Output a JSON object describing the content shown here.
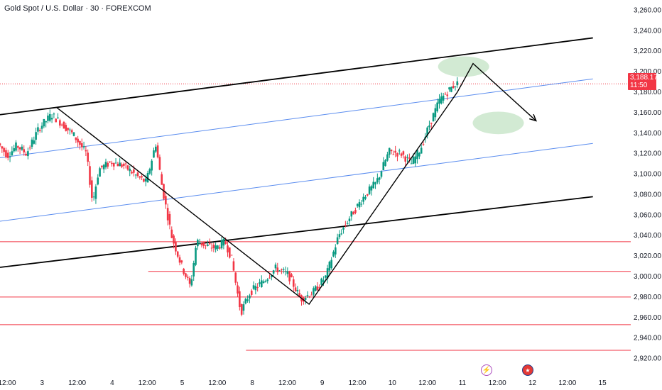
{
  "header": {
    "title": "Gold Spot / U.S. Dollar · 30 · FOREXCOM"
  },
  "price_tag": {
    "price": "3,188.17",
    "countdown": "11:50",
    "color": "#f23645"
  },
  "icons": {
    "lightning": "lightning-icon",
    "flags": "us-flag-event-icon"
  },
  "colors": {
    "up": "#089981",
    "down": "#f23645",
    "trend": "#000000",
    "channel": "#5b8def",
    "hline": "#f23645",
    "zone": "#a5d6a7"
  },
  "chart_data": {
    "type": "candlestick",
    "symbol": "Gold Spot / U.S. Dollar",
    "interval": "30",
    "source": "FOREXCOM",
    "last_price": 3188.17,
    "ylim": [
      2910,
      3270
    ],
    "y_ticks": [
      "3,260.00",
      "3,240.00",
      "3,220.00",
      "3,200.00",
      "3,180.00",
      "3,160.00",
      "3,140.00",
      "3,120.00",
      "3,100.00",
      "3,080.00",
      "3,060.00",
      "3,040.00",
      "3,020.00",
      "3,000.00",
      "2,980.00",
      "2,960.00",
      "2,940.00",
      "2,920.00"
    ],
    "x_ticks": [
      "12:00",
      "3",
      "12:00",
      "4",
      "12:00",
      "5",
      "12:00",
      "8",
      "12:00",
      "9",
      "12:00",
      "10",
      "12:00",
      "11",
      "12:00",
      "12",
      "12:00",
      "15"
    ],
    "swing_path": [
      [
        0.18,
        3165
      ],
      [
        0.98,
        2973
      ],
      [
        1.45,
        3180
      ],
      [
        1.5,
        3208
      ],
      [
        1.7,
        3152
      ]
    ],
    "price_path": [
      [
        0,
        3130
      ],
      [
        0.03,
        3118
      ],
      [
        0.06,
        3128
      ],
      [
        0.09,
        3120
      ],
      [
        0.13,
        3145
      ],
      [
        0.17,
        3158
      ],
      [
        0.2,
        3150
      ],
      [
        0.24,
        3138
      ],
      [
        0.28,
        3120
      ],
      [
        0.3,
        3072
      ],
      [
        0.32,
        3105
      ],
      [
        0.36,
        3112
      ],
      [
        0.4,
        3108
      ],
      [
        0.44,
        3098
      ],
      [
        0.47,
        3092
      ],
      [
        0.5,
        3130
      ],
      [
        0.52,
        3088
      ],
      [
        0.55,
        3040
      ],
      [
        0.58,
        3012
      ],
      [
        0.61,
        2990
      ],
      [
        0.63,
        3035
      ],
      [
        0.66,
        3030
      ],
      [
        0.69,
        3028
      ],
      [
        0.72,
        3034
      ],
      [
        0.74,
        3018
      ],
      [
        0.77,
        2965
      ],
      [
        0.8,
        2985
      ],
      [
        0.84,
        2995
      ],
      [
        0.88,
        3008
      ],
      [
        0.92,
        3002
      ],
      [
        0.96,
        2978
      ],
      [
        1.0,
        2985
      ],
      [
        1.04,
        3000
      ],
      [
        1.08,
        3040
      ],
      [
        1.12,
        3060
      ],
      [
        1.16,
        3078
      ],
      [
        1.2,
        3092
      ],
      [
        1.24,
        3122
      ],
      [
        1.28,
        3120
      ],
      [
        1.31,
        3110
      ],
      [
        1.34,
        3125
      ],
      [
        1.37,
        3150
      ],
      [
        1.4,
        3172
      ],
      [
        1.43,
        3182
      ],
      [
        1.45,
        3188.17
      ]
    ],
    "outer_channel": [
      [
        [
          0,
          3158
        ],
        [
          1.88,
          3233
        ]
      ],
      [
        [
          0,
          3009
        ],
        [
          1.88,
          3078
        ]
      ]
    ],
    "inner_channel": [
      [
        [
          0,
          3116
        ],
        [
          1.88,
          3193
        ]
      ],
      [
        [
          0,
          3054
        ],
        [
          1.88,
          3130
        ]
      ]
    ],
    "horizontal_levels": [
      {
        "price": 3034,
        "x_start": 0.0
      },
      {
        "price": 3005,
        "x_start": 0.47
      },
      {
        "price": 2980,
        "x_start": 0.0
      },
      {
        "price": 2953,
        "x_start": 0.0
      },
      {
        "price": 2928,
        "x_start": 0.78
      }
    ],
    "target_zones": [
      {
        "center": [
          1.47,
          3205
        ],
        "radius": [
          0.14,
          10
        ]
      },
      {
        "center": [
          1.58,
          3150
        ],
        "radius": [
          0.14,
          11
        ]
      }
    ]
  }
}
